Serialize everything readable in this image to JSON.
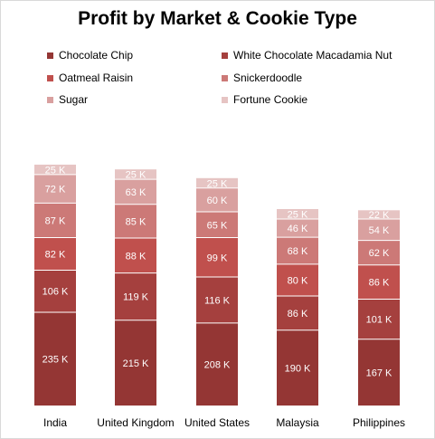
{
  "chart_data": {
    "type": "bar",
    "stacked": true,
    "title": "Profit by Market & Cookie Type",
    "categories": [
      "India",
      "United Kingdom",
      "United States",
      "Malaysia",
      "Philippines"
    ],
    "series": [
      {
        "name": "Chocolate Chip",
        "values": [
          235,
          215,
          208,
          190,
          167
        ],
        "labels": [
          "235 K",
          "215 K",
          "208 K",
          "190 K",
          "167 K"
        ],
        "color": "#943634"
      },
      {
        "name": "White Chocolate Macadamia Nut",
        "values": [
          106,
          119,
          116,
          86,
          101
        ],
        "labels": [
          "106 K",
          "119 K",
          "116 K",
          "86 K",
          "101 K"
        ],
        "color": "#a5403e"
      },
      {
        "name": "Oatmeal Raisin",
        "values": [
          82,
          88,
          99,
          80,
          86
        ],
        "labels": [
          "82 K",
          "88 K",
          "99 K",
          "80 K",
          "86 K"
        ],
        "color": "#c0504d"
      },
      {
        "name": "Snickerdoodle",
        "values": [
          87,
          85,
          65,
          68,
          62
        ],
        "labels": [
          "87 K",
          "85 K",
          "65 K",
          "68 K",
          "62 K"
        ],
        "color": "#cc7977"
      },
      {
        "name": "Sugar",
        "values": [
          72,
          63,
          60,
          46,
          54
        ],
        "labels": [
          "72 K",
          "63 K",
          "60 K",
          "46 K",
          "54 K"
        ],
        "color": "#d9a09f"
      },
      {
        "name": "Fortune Cookie",
        "values": [
          25,
          25,
          25,
          25,
          22
        ],
        "labels": [
          "25 K",
          "25 K",
          "25 K",
          "25 K",
          "22 K"
        ],
        "color": "#e6c4c3"
      }
    ],
    "legend_position": "top",
    "grid": false,
    "ylim": [
      0,
      625
    ]
  }
}
